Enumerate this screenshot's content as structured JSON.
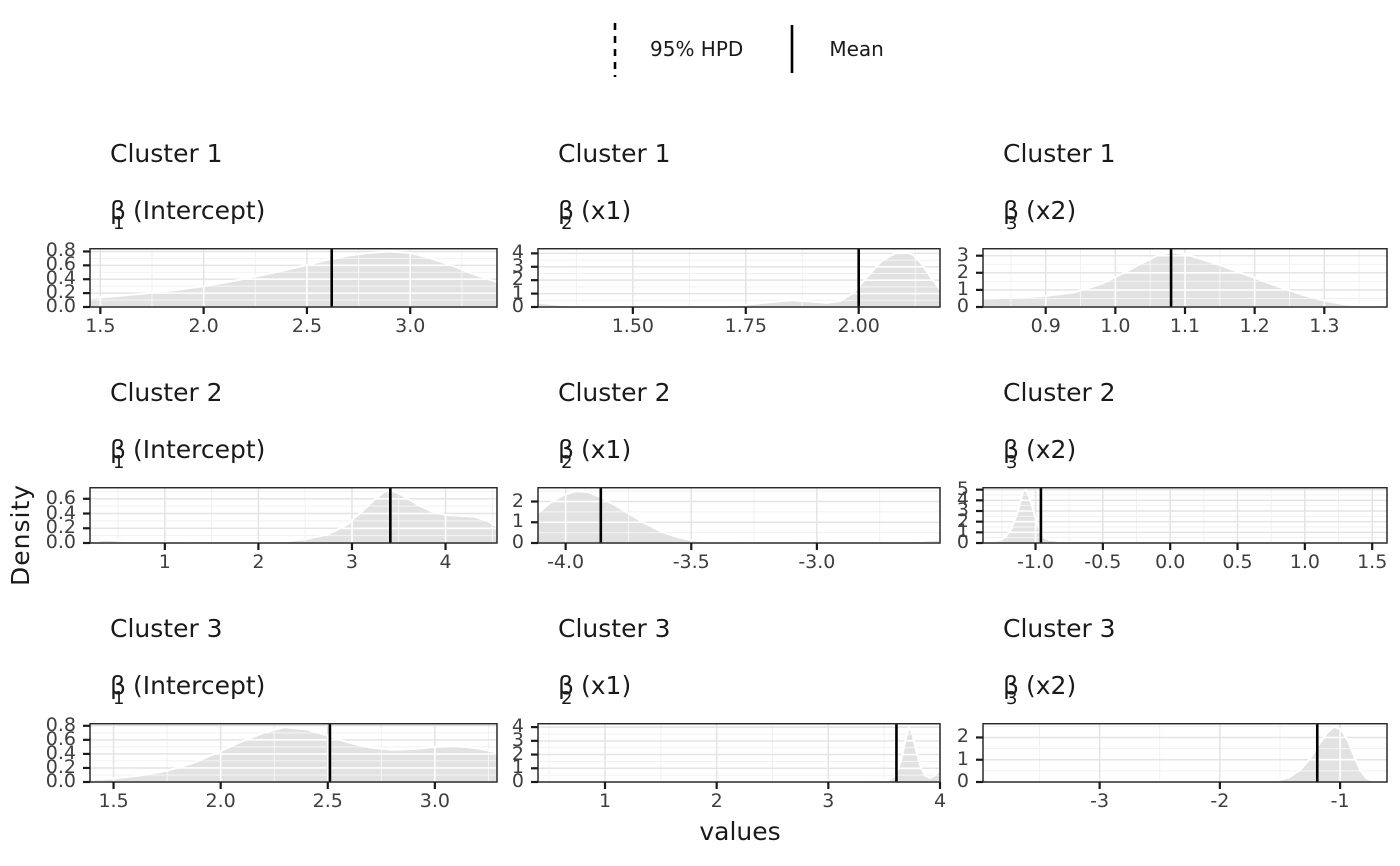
{
  "legend": {
    "hpd_label": "95% HPD",
    "mean_label": "Mean"
  },
  "axis_titles": {
    "y": "Density",
    "x": "values"
  },
  "chart_data": {
    "type": "area",
    "layout": "3x3 facet grid of posterior density plots",
    "grid": "on",
    "legend_position": "top-center",
    "colors": {
      "density_fill": "#e2e2e2",
      "density_outline": "#ffffff",
      "mean_line": "#000000",
      "hpd_line": "#000000",
      "panel_background": "#ffffff",
      "gridline": "#e4e4e4",
      "axis_text": "#3f3f3f",
      "panel_border": "#2a2a2a"
    },
    "panels": [
      {
        "row": 0,
        "col": 0,
        "title": "Cluster 1",
        "param_symbol": "β",
        "param_subscript": "1",
        "param_label": "(Intercept)",
        "xlim": [
          1.45,
          3.42
        ],
        "x_ticks": [
          1.5,
          2.0,
          2.5,
          3.0
        ],
        "x_tick_labels": [
          "1.5",
          "2.0",
          "2.5",
          "3.0"
        ],
        "ylim": [
          0,
          0.85
        ],
        "y_ticks": [
          0,
          0.2,
          0.4,
          0.6,
          0.8
        ],
        "y_tick_labels": [
          "0.0",
          "0.2",
          "0.4",
          "0.6",
          "0.8"
        ],
        "mean": 2.62,
        "density": [
          [
            1.45,
            0.13
          ],
          [
            1.55,
            0.15
          ],
          [
            1.7,
            0.19
          ],
          [
            1.85,
            0.24
          ],
          [
            2.0,
            0.3
          ],
          [
            2.15,
            0.38
          ],
          [
            2.3,
            0.47
          ],
          [
            2.45,
            0.57
          ],
          [
            2.6,
            0.68
          ],
          [
            2.7,
            0.74
          ],
          [
            2.8,
            0.78
          ],
          [
            2.9,
            0.8
          ],
          [
            3.0,
            0.78
          ],
          [
            3.1,
            0.7
          ],
          [
            3.2,
            0.6
          ],
          [
            3.3,
            0.48
          ],
          [
            3.42,
            0.36
          ]
        ]
      },
      {
        "row": 0,
        "col": 1,
        "title": "Cluster 1",
        "param_symbol": "β",
        "param_subscript": "2",
        "param_label": "(x1)",
        "xlim": [
          1.29,
          2.18
        ],
        "x_ticks": [
          1.5,
          1.75,
          2.0
        ],
        "x_tick_labels": [
          "1.50",
          "1.75",
          "2.00"
        ],
        "ylim": [
          0,
          4.4
        ],
        "y_ticks": [
          0,
          1,
          2,
          3,
          4
        ],
        "y_tick_labels": [
          "0",
          "1",
          "2",
          "3",
          "4"
        ],
        "mean": 2.0,
        "density": [
          [
            1.29,
            0.32
          ],
          [
            1.32,
            0.22
          ],
          [
            1.36,
            0.1
          ],
          [
            1.42,
            0.04
          ],
          [
            1.5,
            0.02
          ],
          [
            1.6,
            0.03
          ],
          [
            1.68,
            0.07
          ],
          [
            1.75,
            0.18
          ],
          [
            1.81,
            0.38
          ],
          [
            1.85,
            0.5
          ],
          [
            1.89,
            0.42
          ],
          [
            1.93,
            0.32
          ],
          [
            1.96,
            0.45
          ],
          [
            1.99,
            1.1
          ],
          [
            2.02,
            2.3
          ],
          [
            2.05,
            3.4
          ],
          [
            2.08,
            4.0
          ],
          [
            2.1,
            4.15
          ],
          [
            2.12,
            3.9
          ],
          [
            2.14,
            3.2
          ],
          [
            2.16,
            2.2
          ],
          [
            2.18,
            1.3
          ]
        ]
      },
      {
        "row": 0,
        "col": 2,
        "title": "Cluster 1",
        "param_symbol": "β",
        "param_subscript": "3",
        "param_label": "(x2)",
        "xlim": [
          0.81,
          1.39
        ],
        "x_ticks": [
          0.9,
          1.0,
          1.1,
          1.2,
          1.3
        ],
        "x_tick_labels": [
          "0.9",
          "1.0",
          "1.1",
          "1.2",
          "1.3"
        ],
        "ylim": [
          0,
          3.45
        ],
        "y_ticks": [
          0,
          1,
          2,
          3
        ],
        "y_tick_labels": [
          "0",
          "1",
          "2",
          "3"
        ],
        "mean": 1.08,
        "density": [
          [
            0.81,
            0.5
          ],
          [
            0.86,
            0.55
          ],
          [
            0.9,
            0.65
          ],
          [
            0.94,
            0.85
          ],
          [
            0.98,
            1.35
          ],
          [
            1.01,
            1.95
          ],
          [
            1.04,
            2.6
          ],
          [
            1.06,
            3.0
          ],
          [
            1.08,
            3.2
          ],
          [
            1.1,
            3.1
          ],
          [
            1.12,
            2.85
          ],
          [
            1.15,
            2.45
          ],
          [
            1.18,
            2.0
          ],
          [
            1.21,
            1.55
          ],
          [
            1.24,
            1.1
          ],
          [
            1.27,
            0.7
          ],
          [
            1.3,
            0.38
          ],
          [
            1.33,
            0.15
          ],
          [
            1.36,
            0.07
          ],
          [
            1.39,
            0.12
          ]
        ]
      },
      {
        "row": 1,
        "col": 0,
        "title": "Cluster 2",
        "param_symbol": "β",
        "param_subscript": "1",
        "param_label": "(Intercept)",
        "xlim": [
          0.2,
          4.55
        ],
        "x_ticks": [
          1,
          2,
          3,
          4
        ],
        "x_tick_labels": [
          "1",
          "2",
          "3",
          "4"
        ],
        "ylim": [
          0,
          0.76
        ],
        "y_ticks": [
          0,
          0.2,
          0.4,
          0.6
        ],
        "y_tick_labels": [
          "0.0",
          "0.2",
          "0.4",
          "0.6"
        ],
        "mean": 3.41,
        "density": [
          [
            0.2,
            0.01
          ],
          [
            0.35,
            0.045
          ],
          [
            0.5,
            0.035
          ],
          [
            0.65,
            0.015
          ],
          [
            0.9,
            0.005
          ],
          [
            1.3,
            0.003
          ],
          [
            1.8,
            0.004
          ],
          [
            2.2,
            0.015
          ],
          [
            2.5,
            0.05
          ],
          [
            2.75,
            0.12
          ],
          [
            2.95,
            0.25
          ],
          [
            3.1,
            0.42
          ],
          [
            3.25,
            0.6
          ],
          [
            3.35,
            0.7
          ],
          [
            3.45,
            0.7
          ],
          [
            3.55,
            0.64
          ],
          [
            3.7,
            0.52
          ],
          [
            3.85,
            0.43
          ],
          [
            4.0,
            0.38
          ],
          [
            4.15,
            0.37
          ],
          [
            4.3,
            0.36
          ],
          [
            4.45,
            0.3
          ],
          [
            4.55,
            0.22
          ]
        ]
      },
      {
        "row": 1,
        "col": 1,
        "title": "Cluster 2",
        "param_symbol": "β",
        "param_subscript": "2",
        "param_label": "(x1)",
        "xlim": [
          -4.11,
          -2.51
        ],
        "x_ticks": [
          -4.0,
          -3.5,
          -3.0
        ],
        "x_tick_labels": [
          "-4.0",
          "-3.5",
          "-3.0"
        ],
        "ylim": [
          0,
          2.7
        ],
        "y_ticks": [
          0,
          1,
          2
        ],
        "y_tick_labels": [
          "0",
          "1",
          "2"
        ],
        "mean": -3.86,
        "density": [
          [
            -4.11,
            1.45
          ],
          [
            -4.06,
            1.95
          ],
          [
            -4.01,
            2.3
          ],
          [
            -3.96,
            2.5
          ],
          [
            -3.91,
            2.45
          ],
          [
            -3.86,
            2.2
          ],
          [
            -3.8,
            1.8
          ],
          [
            -3.74,
            1.35
          ],
          [
            -3.68,
            0.92
          ],
          [
            -3.62,
            0.55
          ],
          [
            -3.56,
            0.3
          ],
          [
            -3.5,
            0.14
          ],
          [
            -3.44,
            0.06
          ],
          [
            -3.35,
            0.02
          ],
          [
            -3.2,
            0.005
          ],
          [
            -3.0,
            0.003
          ],
          [
            -2.8,
            0.01
          ],
          [
            -2.68,
            0.03
          ],
          [
            -2.58,
            0.1
          ],
          [
            -2.51,
            0.17
          ]
        ]
      },
      {
        "row": 1,
        "col": 2,
        "title": "Cluster 2",
        "param_symbol": "β",
        "param_subscript": "3",
        "param_label": "(x2)",
        "xlim": [
          -1.39,
          1.61
        ],
        "x_ticks": [
          -1.0,
          -0.5,
          0.0,
          0.5,
          1.0,
          1.5
        ],
        "x_tick_labels": [
          "-1.0",
          "-0.5",
          "0.0",
          "0.5",
          "1.0",
          "1.5"
        ],
        "ylim": [
          0,
          5.25
        ],
        "y_ticks": [
          0,
          1,
          2,
          3,
          4,
          5
        ],
        "y_tick_labels": [
          "0",
          "1",
          "2",
          "3",
          "4",
          "5"
        ],
        "mean": -0.96,
        "density": [
          [
            -1.39,
            0.04
          ],
          [
            -1.33,
            0.1
          ],
          [
            -1.27,
            0.25
          ],
          [
            -1.22,
            0.6
          ],
          [
            -1.18,
            1.3
          ],
          [
            -1.14,
            2.6
          ],
          [
            -1.11,
            4.0
          ],
          [
            -1.09,
            4.85
          ],
          [
            -1.07,
            4.95
          ],
          [
            -1.05,
            4.4
          ],
          [
            -1.02,
            3.2
          ],
          [
            -0.99,
            1.9
          ],
          [
            -0.96,
            0.95
          ],
          [
            -0.93,
            0.45
          ],
          [
            -0.9,
            0.28
          ],
          [
            -0.87,
            0.3
          ],
          [
            -0.84,
            0.22
          ],
          [
            -0.8,
            0.1
          ],
          [
            -0.75,
            0.03
          ],
          [
            -0.65,
            0.005
          ],
          [
            -0.4,
            0
          ],
          [
            0,
            0
          ],
          [
            0.5,
            0
          ],
          [
            1.0,
            0
          ],
          [
            1.61,
            0
          ]
        ]
      },
      {
        "row": 2,
        "col": 0,
        "title": "Cluster 3",
        "param_symbol": "β",
        "param_subscript": "1",
        "param_label": "(Intercept)",
        "xlim": [
          1.39,
          3.29
        ],
        "x_ticks": [
          1.5,
          2.0,
          2.5,
          3.0
        ],
        "x_tick_labels": [
          "1.5",
          "2.0",
          "2.5",
          "3.0"
        ],
        "ylim": [
          0,
          0.84
        ],
        "y_ticks": [
          0,
          0.2,
          0.4,
          0.6,
          0.8
        ],
        "y_tick_labels": [
          "0.0",
          "0.2",
          "0.4",
          "0.6",
          "0.8"
        ],
        "mean": 2.51,
        "density": [
          [
            1.39,
            0.03
          ],
          [
            1.5,
            0.05
          ],
          [
            1.62,
            0.09
          ],
          [
            1.75,
            0.16
          ],
          [
            1.88,
            0.28
          ],
          [
            2.0,
            0.44
          ],
          [
            2.1,
            0.58
          ],
          [
            2.2,
            0.7
          ],
          [
            2.3,
            0.78
          ],
          [
            2.4,
            0.75
          ],
          [
            2.5,
            0.66
          ],
          [
            2.6,
            0.56
          ],
          [
            2.7,
            0.49
          ],
          [
            2.8,
            0.46
          ],
          [
            2.9,
            0.47
          ],
          [
            3.0,
            0.5
          ],
          [
            3.1,
            0.51
          ],
          [
            3.2,
            0.48
          ],
          [
            3.29,
            0.42
          ]
        ]
      },
      {
        "row": 2,
        "col": 1,
        "title": "Cluster 3",
        "param_symbol": "β",
        "param_subscript": "2",
        "param_label": "(x1)",
        "xlim": [
          0.4,
          4.0
        ],
        "x_ticks": [
          1,
          2,
          3,
          4
        ],
        "x_tick_labels": [
          "1",
          "2",
          "3",
          "4"
        ],
        "ylim": [
          0,
          4.3
        ],
        "y_ticks": [
          0,
          1,
          2,
          3,
          4
        ],
        "y_tick_labels": [
          "0",
          "1",
          "2",
          "3",
          "4"
        ],
        "mean": 3.61,
        "density": [
          [
            0.4,
            0.02
          ],
          [
            0.8,
            0.008
          ],
          [
            1.5,
            0.005
          ],
          [
            2.2,
            0.006
          ],
          [
            2.8,
            0.01
          ],
          [
            3.1,
            0.02
          ],
          [
            3.3,
            0.05
          ],
          [
            3.4,
            0.15
          ],
          [
            3.47,
            0.1
          ],
          [
            3.54,
            0.12
          ],
          [
            3.6,
            0.45
          ],
          [
            3.65,
            1.5
          ],
          [
            3.69,
            3.0
          ],
          [
            3.72,
            3.95
          ],
          [
            3.75,
            3.6
          ],
          [
            3.79,
            2.2
          ],
          [
            3.83,
            1.0
          ],
          [
            3.87,
            0.45
          ],
          [
            3.91,
            0.3
          ],
          [
            3.95,
            0.45
          ],
          [
            3.98,
            0.72
          ],
          [
            4.0,
            0.8
          ]
        ]
      },
      {
        "row": 2,
        "col": 2,
        "title": "Cluster 3",
        "param_symbol": "β",
        "param_subscript": "3",
        "param_label": "(x2)",
        "xlim": [
          -3.97,
          -0.61
        ],
        "x_ticks": [
          -3,
          -2,
          -1
        ],
        "x_tick_labels": [
          "-3",
          "-2",
          "-1"
        ],
        "ylim": [
          0,
          2.65
        ],
        "y_ticks": [
          0,
          1,
          2
        ],
        "y_tick_labels": [
          "0",
          "1",
          "2"
        ],
        "mean": -1.19,
        "density": [
          [
            -3.97,
            0.14
          ],
          [
            -3.92,
            0.06
          ],
          [
            -3.85,
            0.015
          ],
          [
            -3.7,
            0.004
          ],
          [
            -3.3,
            0.002
          ],
          [
            -2.8,
            0.002
          ],
          [
            -2.3,
            0.003
          ],
          [
            -1.9,
            0.006
          ],
          [
            -1.65,
            0.02
          ],
          [
            -1.52,
            0.07
          ],
          [
            -1.42,
            0.22
          ],
          [
            -1.33,
            0.55
          ],
          [
            -1.25,
            1.05
          ],
          [
            -1.18,
            1.65
          ],
          [
            -1.11,
            2.2
          ],
          [
            -1.05,
            2.48
          ],
          [
            -0.99,
            2.35
          ],
          [
            -0.93,
            1.8
          ],
          [
            -0.88,
            1.1
          ],
          [
            -0.83,
            0.5
          ],
          [
            -0.78,
            0.17
          ],
          [
            -0.73,
            0.04
          ],
          [
            -0.67,
            0.01
          ],
          [
            -0.61,
            0.005
          ]
        ]
      }
    ]
  }
}
